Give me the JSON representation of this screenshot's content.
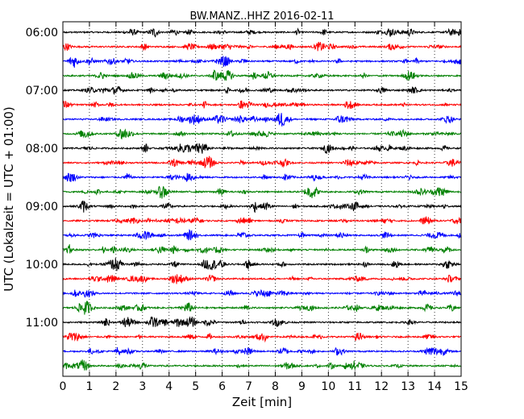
{
  "chart_data": {
    "type": "line",
    "title": "BW.MANZ..HHZ 2016-02-11",
    "xlabel": "Zeit  [min]",
    "ylabel": "UTC (Lokalzeit = UTC + 01:00)",
    "xlim": [
      0,
      15
    ],
    "x_ticks": [
      "0",
      "1",
      "2",
      "3",
      "4",
      "5",
      "6",
      "7",
      "8",
      "9",
      "10",
      "11",
      "12",
      "13",
      "14",
      "15"
    ],
    "y_tick_labels": [
      "06:00",
      "07:00",
      "08:00",
      "09:00",
      "10:00",
      "11:00"
    ],
    "trace_start_times": [
      "06:00",
      "06:15",
      "06:30",
      "06:45",
      "07:00",
      "07:15",
      "07:30",
      "07:45",
      "08:00",
      "08:15",
      "08:30",
      "08:45",
      "09:00",
      "09:15",
      "09:30",
      "09:45",
      "10:00",
      "10:15",
      "10:30",
      "10:45",
      "11:00",
      "11:15",
      "11:30",
      "11:45"
    ],
    "trace_colors": [
      "#000000",
      "#ff0000",
      "#0000ff",
      "#008000"
    ],
    "grid": "vertical-dotted-at-minutes",
    "legend": "none"
  }
}
